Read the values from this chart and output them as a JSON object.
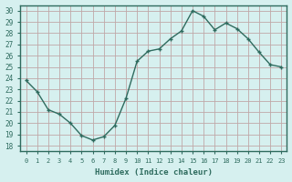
{
  "x": [
    0,
    1,
    2,
    3,
    4,
    5,
    6,
    7,
    8,
    9,
    10,
    11,
    12,
    13,
    14,
    15,
    16,
    17,
    18,
    19,
    20,
    21,
    22,
    23
  ],
  "y": [
    23.8,
    22.8,
    21.2,
    20.8,
    20.0,
    18.9,
    18.5,
    18.8,
    19.8,
    22.2,
    25.5,
    26.4,
    26.6,
    27.5,
    28.2,
    30.0,
    29.5,
    28.3,
    28.9,
    28.4,
    27.5,
    26.3,
    25.2,
    25.0
  ],
  "line_color": "#2e6b5e",
  "marker": "+",
  "bg_color": "#d6f0ef",
  "plot_bg_color": "#d6f0ef",
  "grid_color": "#c0a8a8",
  "border_color": "#2e6b5e",
  "xlabel": "Humidex (Indice chaleur)",
  "tick_label_color": "#2e6b5e",
  "ylabel_ticks": [
    18,
    19,
    20,
    21,
    22,
    23,
    24,
    25,
    26,
    27,
    28,
    29,
    30
  ],
  "xlim": [
    -0.5,
    23.5
  ],
  "ylim": [
    17.5,
    30.5
  ]
}
